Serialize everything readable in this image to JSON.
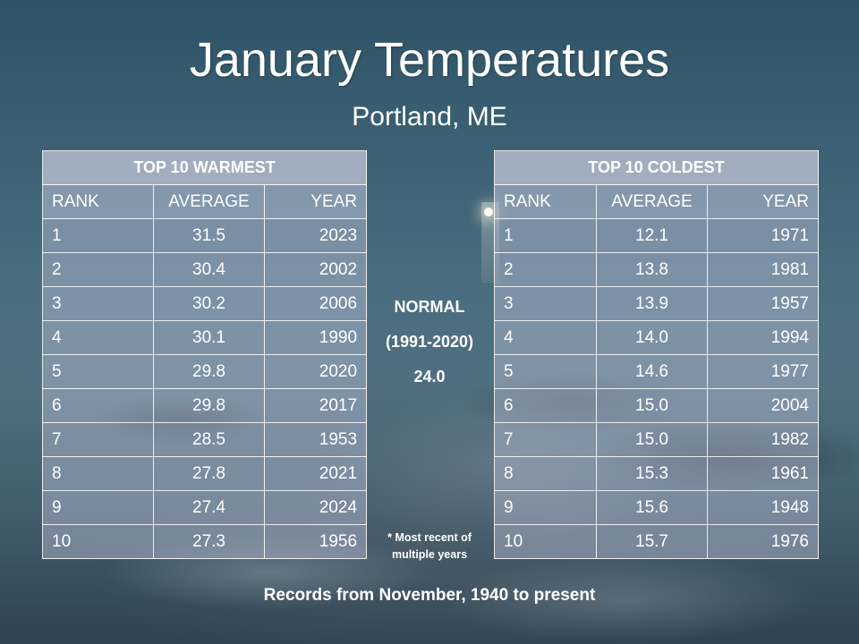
{
  "title": "January Temperatures",
  "subtitle": "Portland, ME",
  "warmest": {
    "heading": "TOP 10 WARMEST",
    "columns": [
      "RANK",
      "AVERAGE",
      "YEAR"
    ],
    "rows": [
      [
        "1",
        "31.5",
        "2023"
      ],
      [
        "2",
        "30.4",
        "2002"
      ],
      [
        "3",
        "30.2",
        "2006"
      ],
      [
        "4",
        "30.1",
        "1990"
      ],
      [
        "5",
        "29.8",
        "2020"
      ],
      [
        "6",
        "29.8",
        "2017"
      ],
      [
        "7",
        "28.5",
        "1953"
      ],
      [
        "8",
        "27.8",
        "2021"
      ],
      [
        "9",
        "27.4",
        "2024"
      ],
      [
        "10",
        "27.3",
        "1956"
      ]
    ]
  },
  "coldest": {
    "heading": "TOP 10 COLDEST",
    "columns": [
      "RANK",
      "AVERAGE",
      "YEAR"
    ],
    "rows": [
      [
        "1",
        "12.1",
        "1971"
      ],
      [
        "2",
        "13.8",
        "1981"
      ],
      [
        "3",
        "13.9",
        "1957"
      ],
      [
        "4",
        "14.0",
        "1994"
      ],
      [
        "5",
        "14.6",
        "1977"
      ],
      [
        "6",
        "15.0",
        "2004"
      ],
      [
        "7",
        "15.0",
        "1982"
      ],
      [
        "8",
        "15.3",
        "1961"
      ],
      [
        "9",
        "15.6",
        "1948"
      ],
      [
        "10",
        "15.7",
        "1976"
      ]
    ]
  },
  "normal": {
    "label": "NORMAL",
    "period": "(1991-2020)",
    "value": "24.0"
  },
  "footnote": {
    "line1": "* Most recent of",
    "line2": "multiple years"
  },
  "footer": "Records from November, 1940 to present"
}
